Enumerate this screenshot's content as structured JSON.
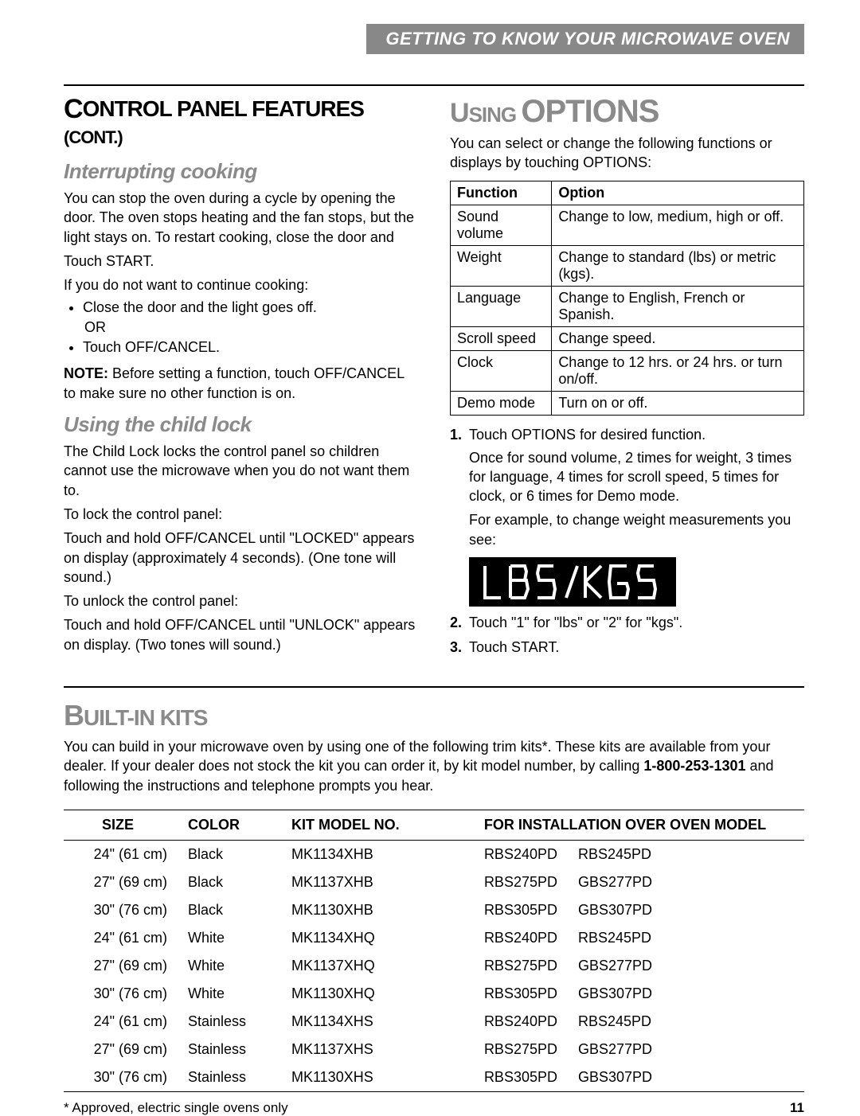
{
  "header_bar": "GETTING TO KNOW YOUR MICROWAVE OVEN",
  "left": {
    "title_pre": "C",
    "title_rest": "ONTROL PANEL FEATURES",
    "title_small": "(CONT.)",
    "s1_heading": "Interrupting cooking",
    "s1_p1": "You can stop the oven during a cycle by opening the door. The oven stops heating and the fan stops, but the light stays on. To restart cooking, close the door and",
    "s1_p2": "Touch START.",
    "s1_p3": "If you do not want to continue cooking:",
    "s1_li1": "Close the door and the light goes off.",
    "s1_or": "OR",
    "s1_li2": "Touch OFF/CANCEL.",
    "s1_note_label": "NOTE:",
    "s1_note": " Before setting a function, touch OFF/CANCEL to make sure no other function is on.",
    "s2_heading": "Using the child lock",
    "s2_p1": "The Child Lock locks the control panel so children cannot use the microwave when you do not want them to.",
    "s2_p2": "To lock the control panel:",
    "s2_p3": "Touch and hold OFF/CANCEL until \"LOCKED\" appears on display (approximately 4 seconds). (One tone will sound.)",
    "s2_p4": "To unlock the control panel:",
    "s2_p5": "Touch and hold OFF/CANCEL until \"UNLOCK\" appears on display. (Two tones will sound.)"
  },
  "right": {
    "title_pre": "U",
    "title_mid": "SING ",
    "title_big": "OPTIONS",
    "intro": "You can select or change the following functions or displays by touching OPTIONS:",
    "table": {
      "h1": "Function",
      "h2": "Option",
      "rows": [
        [
          "Sound volume",
          "Change to low, medium, high or off."
        ],
        [
          "Weight",
          "Change to standard (lbs) or metric (kgs)."
        ],
        [
          "Language",
          "Change to English, French or Spanish."
        ],
        [
          "Scroll speed",
          "Change speed."
        ],
        [
          "Clock",
          "Change to 12 hrs. or 24 hrs. or turn on/off."
        ],
        [
          "Demo mode",
          "Turn on or off."
        ]
      ]
    },
    "step1": "Touch OPTIONS for desired function.",
    "step1a": "Once for sound volume, 2 times for weight, 3 times for language, 4 times for scroll speed, 5 times for clock, or 6 times for Demo mode.",
    "step1b": "For example, to change weight measurements you see:",
    "display_text": "LBS/KGS",
    "step2": "Touch \"1\" for \"lbs\" or \"2\" for \"kgs\".",
    "step3": "Touch START."
  },
  "kits": {
    "title_pre": "B",
    "title_rest": "UILT-IN KITS",
    "intro_a": "You can build in your microwave oven by using one of the following trim kits*. These kits are available from your dealer. If your dealer does not stock the kit you can order it, by kit model number, by calling ",
    "phone": "1-800-253-1301",
    "intro_b": " and following the instructions and telephone prompts you hear.",
    "headers": [
      "SIZE",
      "COLOR",
      "KIT MODEL NO.",
      "FOR INSTALLATION OVER OVEN MODEL"
    ],
    "rows": [
      [
        "24\" (61 cm)",
        "Black",
        "MK1134XHB",
        "RBS240PD",
        "RBS245PD"
      ],
      [
        "27\" (69 cm)",
        "Black",
        "MK1137XHB",
        "RBS275PD",
        "GBS277PD"
      ],
      [
        "30\" (76 cm)",
        "Black",
        "MK1130XHB",
        "RBS305PD",
        "GBS307PD"
      ],
      [
        "24\" (61 cm)",
        "White",
        "MK1134XHQ",
        "RBS240PD",
        "RBS245PD"
      ],
      [
        "27\" (69 cm)",
        "White",
        "MK1137XHQ",
        "RBS275PD",
        "GBS277PD"
      ],
      [
        "30\" (76 cm)",
        "White",
        "MK1130XHQ",
        "RBS305PD",
        "GBS307PD"
      ],
      [
        "24\" (61 cm)",
        "Stainless",
        "MK1134XHS",
        "RBS240PD",
        "RBS245PD"
      ],
      [
        "27\" (69 cm)",
        "Stainless",
        "MK1137XHS",
        "RBS275PD",
        "GBS277PD"
      ],
      [
        "30\" (76 cm)",
        "Stainless",
        "MK1130XHS",
        "RBS305PD",
        "GBS307PD"
      ]
    ],
    "footnote": "* Approved, electric single ovens only",
    "page": "11"
  }
}
